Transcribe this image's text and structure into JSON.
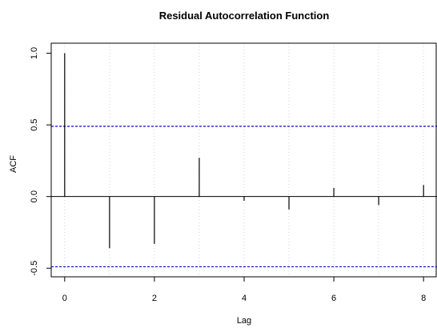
{
  "chart_data": {
    "type": "bar",
    "title": "Residual Autocorrelation Function",
    "xlabel": "Lag",
    "ylabel": "ACF",
    "x": [
      0,
      1,
      2,
      3,
      4,
      5,
      6,
      7,
      8
    ],
    "values": [
      1.0,
      -0.36,
      -0.33,
      0.27,
      -0.03,
      -0.09,
      0.06,
      -0.06,
      0.08
    ],
    "confidence_bounds": [
      0.49,
      -0.49
    ],
    "xlim": [
      -0.3,
      8.3
    ],
    "ylim": [
      -0.56,
      1.07
    ],
    "x_ticks": [
      0,
      2,
      4,
      6,
      8
    ],
    "y_ticks": [
      -0.5,
      0.0,
      0.5,
      1.0
    ],
    "x_tick_labels": [
      "0",
      "2",
      "4",
      "6",
      "8"
    ],
    "y_tick_labels": [
      "-0.5",
      "0.0",
      "0.5",
      "1.0"
    ],
    "grid": "vertical dotted",
    "colors": {
      "bars": "#000000",
      "bounds": "#0000ff",
      "grid": "#d3d3d3",
      "axis": "#000000"
    }
  }
}
